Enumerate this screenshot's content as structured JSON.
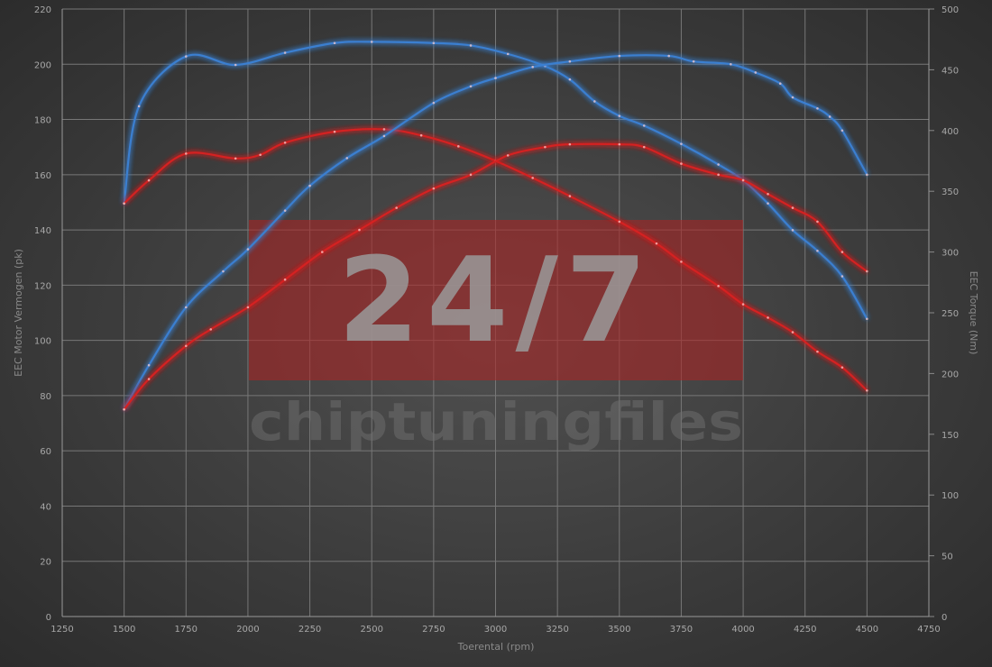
{
  "chart_data": {
    "type": "line",
    "title": "",
    "xlabel": "Toerental (rpm)",
    "ylabel_left": "EEC Motor Vermogen (pk)",
    "ylabel_right": "EEC Torque (Nm)",
    "xlim": [
      1250,
      4750
    ],
    "xticks": [
      1250,
      1500,
      1750,
      2000,
      2250,
      2500,
      2750,
      3000,
      3250,
      3500,
      3750,
      4000,
      4250,
      4500,
      4750
    ],
    "ylim_left": [
      0,
      220
    ],
    "yticks_left": [
      0,
      20,
      40,
      60,
      80,
      100,
      120,
      140,
      160,
      180,
      200,
      220
    ],
    "ylim_right": [
      0,
      500
    ],
    "yticks_right": [
      0,
      50,
      100,
      150,
      200,
      250,
      300,
      350,
      400,
      450,
      500
    ],
    "grid": true,
    "background": "#404040",
    "watermark": {
      "big": "24/7",
      "small": "chiptuningfiles",
      "color": "#b02020"
    },
    "series": [
      {
        "axis": "right",
        "color": "#3a7fd0",
        "x": [
          1500,
          1560,
          1750,
          1950,
          2150,
          2350,
          2500,
          2750,
          2900,
          3050,
          3200,
          3300,
          3400,
          3500,
          3600,
          3750,
          3900,
          4000,
          4100,
          4200,
          4300,
          4400,
          4500
        ],
        "y": [
          340,
          420,
          461,
          454,
          464,
          472,
          473,
          472,
          470,
          463,
          453,
          442,
          424,
          412,
          404,
          389,
          372,
          359,
          340,
          318,
          301,
          280,
          245
        ]
      },
      {
        "axis": "right",
        "color": "#d42020",
        "x": [
          1500,
          1600,
          1750,
          1950,
          2050,
          2150,
          2350,
          2550,
          2700,
          2850,
          3000,
          3150,
          3300,
          3500,
          3650,
          3750,
          3900,
          4000,
          4100,
          4200,
          4300,
          4400,
          4500
        ],
        "y": [
          340,
          359,
          381,
          377,
          380,
          390,
          399,
          401,
          396,
          387,
          375,
          361,
          346,
          325,
          307,
          292,
          272,
          257,
          246,
          234,
          218,
          205,
          186
        ]
      },
      {
        "axis": "left",
        "color": "#3a7fd0",
        "x": [
          1500,
          1600,
          1750,
          1900,
          2000,
          2150,
          2250,
          2400,
          2550,
          2750,
          2900,
          3000,
          3150,
          3300,
          3500,
          3700,
          3800,
          3950,
          4050,
          4150,
          4200,
          4300,
          4350,
          4400,
          4500
        ],
        "y": [
          75,
          91,
          112,
          125,
          133,
          147,
          156,
          166,
          174,
          186,
          192,
          195,
          199,
          201,
          203,
          203,
          201,
          200,
          197,
          193,
          188,
          184,
          181,
          176,
          160
        ]
      },
      {
        "axis": "left",
        "color": "#d42020",
        "x": [
          1500,
          1600,
          1750,
          1850,
          2000,
          2150,
          2300,
          2450,
          2600,
          2750,
          2900,
          3050,
          3200,
          3300,
          3500,
          3600,
          3750,
          3900,
          4000,
          4100,
          4200,
          4300,
          4400,
          4500
        ],
        "y": [
          75,
          86,
          98,
          104,
          112,
          122,
          132,
          140,
          148,
          155,
          160,
          167,
          170,
          171,
          171,
          170,
          164,
          160,
          158,
          153,
          148,
          143,
          132,
          125
        ]
      }
    ]
  }
}
